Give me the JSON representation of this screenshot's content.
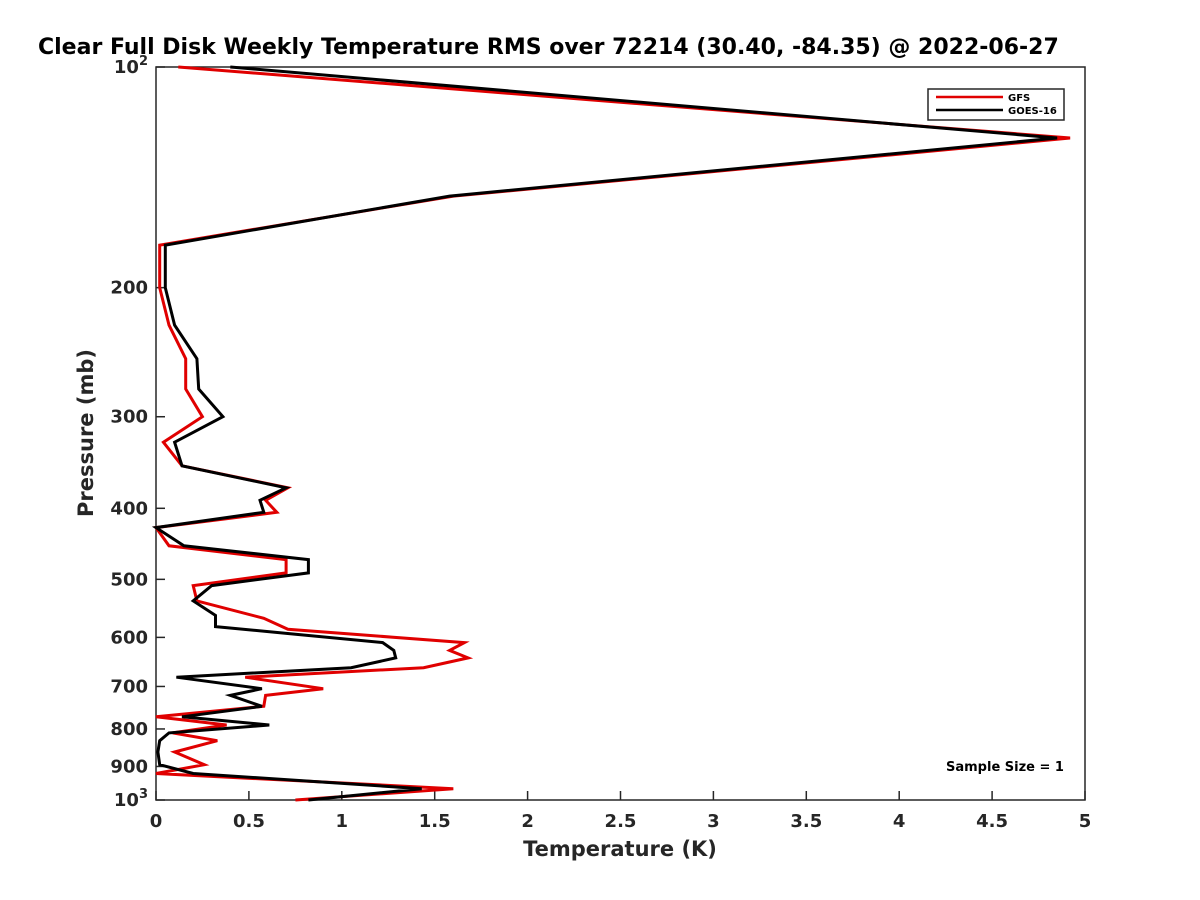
{
  "chart_data": {
    "type": "line",
    "title": "Clear Full Disk Weekly Temperature RMS over 72214 (30.40, -84.35) @ 2022-06-27",
    "xlabel": "Temperature (K)",
    "ylabel": "Pressure (mb)",
    "xlim": [
      0,
      5
    ],
    "ylim": [
      100,
      1000
    ],
    "y_scale": "log",
    "y_direction": "reversed",
    "grid": false,
    "legend_position": "top-right",
    "x_ticks": [
      "0",
      "0.5",
      "1",
      "1.5",
      "2",
      "2.5",
      "3",
      "3.5",
      "4",
      "4.5",
      "5"
    ],
    "y_ticks": [
      {
        "value": 100,
        "base": "10",
        "exp": "2"
      },
      {
        "value": 200,
        "label": "200"
      },
      {
        "value": 300,
        "label": "300"
      },
      {
        "value": 400,
        "label": "400"
      },
      {
        "value": 500,
        "label": "500"
      },
      {
        "value": 600,
        "label": "600"
      },
      {
        "value": 700,
        "label": "700"
      },
      {
        "value": 800,
        "label": "800"
      },
      {
        "value": 900,
        "label": "900"
      },
      {
        "value": 1000,
        "base": "10",
        "exp": "3"
      }
    ],
    "series": [
      {
        "name": "GFS",
        "color": "#e00000",
        "points": [
          [
            0.12,
            100
          ],
          [
            4.92,
            125
          ],
          [
            1.6,
            150
          ],
          [
            0.02,
            175
          ],
          [
            0.02,
            200
          ],
          [
            0.07,
            225
          ],
          [
            0.16,
            250
          ],
          [
            0.16,
            275
          ],
          [
            0.25,
            300
          ],
          [
            0.04,
            325
          ],
          [
            0.14,
            350
          ],
          [
            0.71,
            375
          ],
          [
            0.59,
            390
          ],
          [
            0.65,
            405
          ],
          [
            0.0,
            425
          ],
          [
            0.07,
            450
          ],
          [
            0.7,
            470
          ],
          [
            0.7,
            490
          ],
          [
            0.2,
            510
          ],
          [
            0.22,
            535
          ],
          [
            0.58,
            565
          ],
          [
            0.71,
            585
          ],
          [
            1.66,
            610
          ],
          [
            1.58,
            625
          ],
          [
            1.68,
            640
          ],
          [
            1.44,
            660
          ],
          [
            0.48,
            680
          ],
          [
            0.9,
            705
          ],
          [
            0.59,
            720
          ],
          [
            0.58,
            745
          ],
          [
            0.0,
            770
          ],
          [
            0.38,
            790
          ],
          [
            0.09,
            810
          ],
          [
            0.33,
            830
          ],
          [
            0.1,
            860
          ],
          [
            0.26,
            895
          ],
          [
            0.0,
            920
          ],
          [
            1.6,
            965
          ],
          [
            0.75,
            1000
          ]
        ]
      },
      {
        "name": "GOES-16",
        "color": "#000000",
        "points": [
          [
            0.4,
            100
          ],
          [
            4.85,
            125
          ],
          [
            1.58,
            150
          ],
          [
            0.05,
            175
          ],
          [
            0.05,
            200
          ],
          [
            0.1,
            225
          ],
          [
            0.22,
            250
          ],
          [
            0.23,
            275
          ],
          [
            0.36,
            300
          ],
          [
            0.1,
            325
          ],
          [
            0.14,
            350
          ],
          [
            0.7,
            375
          ],
          [
            0.56,
            390
          ],
          [
            0.58,
            405
          ],
          [
            0.0,
            425
          ],
          [
            0.15,
            450
          ],
          [
            0.82,
            470
          ],
          [
            0.82,
            490
          ],
          [
            0.3,
            510
          ],
          [
            0.2,
            535
          ],
          [
            0.32,
            560
          ],
          [
            0.32,
            580
          ],
          [
            1.22,
            610
          ],
          [
            1.28,
            625
          ],
          [
            1.29,
            640
          ],
          [
            1.05,
            660
          ],
          [
            0.11,
            680
          ],
          [
            0.57,
            705
          ],
          [
            0.4,
            720
          ],
          [
            0.57,
            745
          ],
          [
            0.14,
            770
          ],
          [
            0.61,
            790
          ],
          [
            0.07,
            810
          ],
          [
            0.02,
            830
          ],
          [
            0.01,
            860
          ],
          [
            0.02,
            895
          ],
          [
            0.2,
            920
          ],
          [
            1.43,
            965
          ],
          [
            0.82,
            1000
          ]
        ]
      }
    ]
  },
  "legend": {
    "entries": [
      {
        "label": "GFS",
        "color": "#e00000"
      },
      {
        "label": "GOES-16",
        "color": "#000000"
      }
    ]
  },
  "annotation": {
    "sample_size": "Sample Size = 1"
  }
}
